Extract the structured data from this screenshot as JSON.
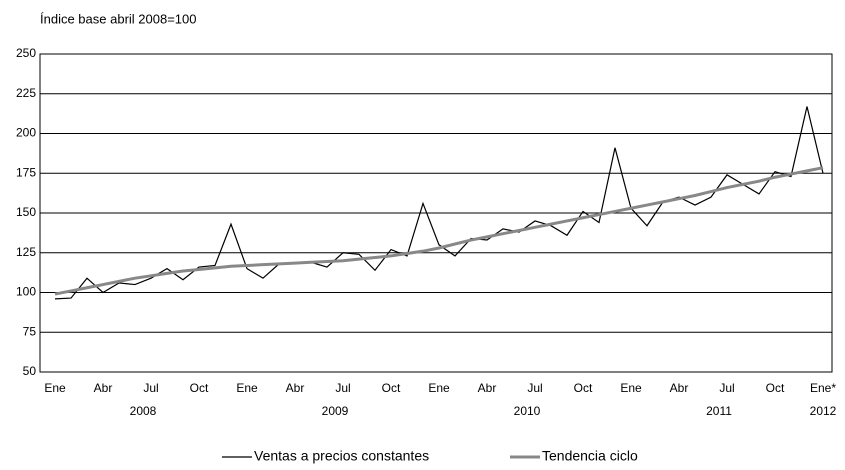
{
  "chart_data": {
    "type": "line",
    "title": "Índice base abril 2008=100",
    "categories": [
      "Ene",
      null,
      null,
      "Abr",
      null,
      null,
      "Jul",
      null,
      null,
      "Oct",
      null,
      null,
      "Ene",
      null,
      null,
      "Abr",
      null,
      null,
      "Jul",
      null,
      null,
      "Oct",
      null,
      null,
      "Ene",
      null,
      null,
      "Abr",
      null,
      null,
      "Jul",
      null,
      null,
      "Oct",
      null,
      null,
      "Ene",
      null,
      null,
      "Abr",
      null,
      null,
      "Jul",
      null,
      null,
      "Oct",
      null,
      null,
      "Ene*"
    ],
    "years": [
      "2008",
      "2009",
      "2010",
      "2011",
      "2012"
    ],
    "series": [
      {
        "name": "Ventas a precios constantes",
        "color": "#000000",
        "values": [
          96,
          96.5,
          109,
          100,
          106,
          105,
          109,
          115,
          108,
          116,
          117,
          143,
          115,
          109,
          118,
          118,
          119,
          116,
          125,
          124,
          114,
          127,
          123,
          156,
          130,
          123,
          134,
          133,
          140,
          138,
          145,
          142,
          136,
          151,
          144,
          191,
          153,
          142,
          157,
          160,
          155,
          160,
          174,
          168,
          162,
          176,
          173,
          217,
          175
        ]
      },
      {
        "name": "Tendencia ciclo",
        "color": "#888888",
        "values": [
          99,
          101,
          103,
          105,
          107,
          109,
          110.5,
          112,
          113.5,
          114.5,
          115.5,
          116.5,
          117,
          117.5,
          118,
          118.5,
          119,
          119.5,
          120,
          121,
          122,
          123,
          124.5,
          126,
          128,
          130.5,
          133,
          135,
          137,
          139,
          141,
          143,
          145,
          147,
          149,
          151,
          153,
          155,
          157,
          159,
          161,
          163.5,
          166,
          168,
          170,
          172.5,
          174.5,
          176.5,
          178.5
        ]
      }
    ],
    "ylim": [
      50,
      250
    ],
    "yticks": [
      50,
      75,
      100,
      125,
      150,
      175,
      200,
      225,
      250
    ],
    "grid": true
  }
}
